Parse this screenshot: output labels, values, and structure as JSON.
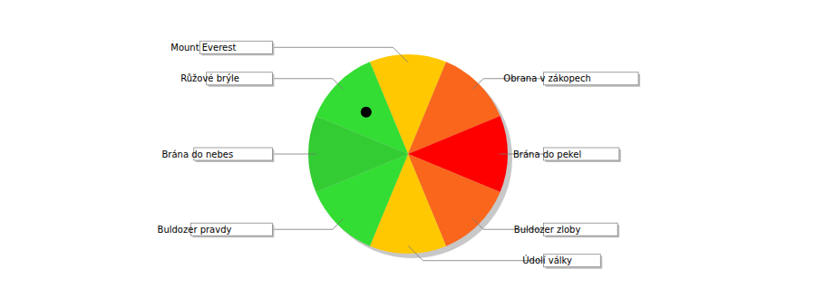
{
  "chart_data": {
    "type": "pie",
    "categories": [
      "Mount Everest",
      "Obrana v zákopech",
      "Brána do pekel",
      "Buldozer zloby",
      "Údolí války",
      "Buldozer pravdy",
      "Brána do nebes",
      "Růžové brýle"
    ],
    "values": [
      12.5,
      12.5,
      12.5,
      12.5,
      12.5,
      12.5,
      12.5,
      12.5
    ],
    "colors": [
      "#ffc800",
      "#f9661c",
      "#ff0000",
      "#f9661c",
      "#ffc800",
      "#33dd33",
      "#33cc33",
      "#33dd33"
    ],
    "pointer": "Růžové brýle"
  }
}
